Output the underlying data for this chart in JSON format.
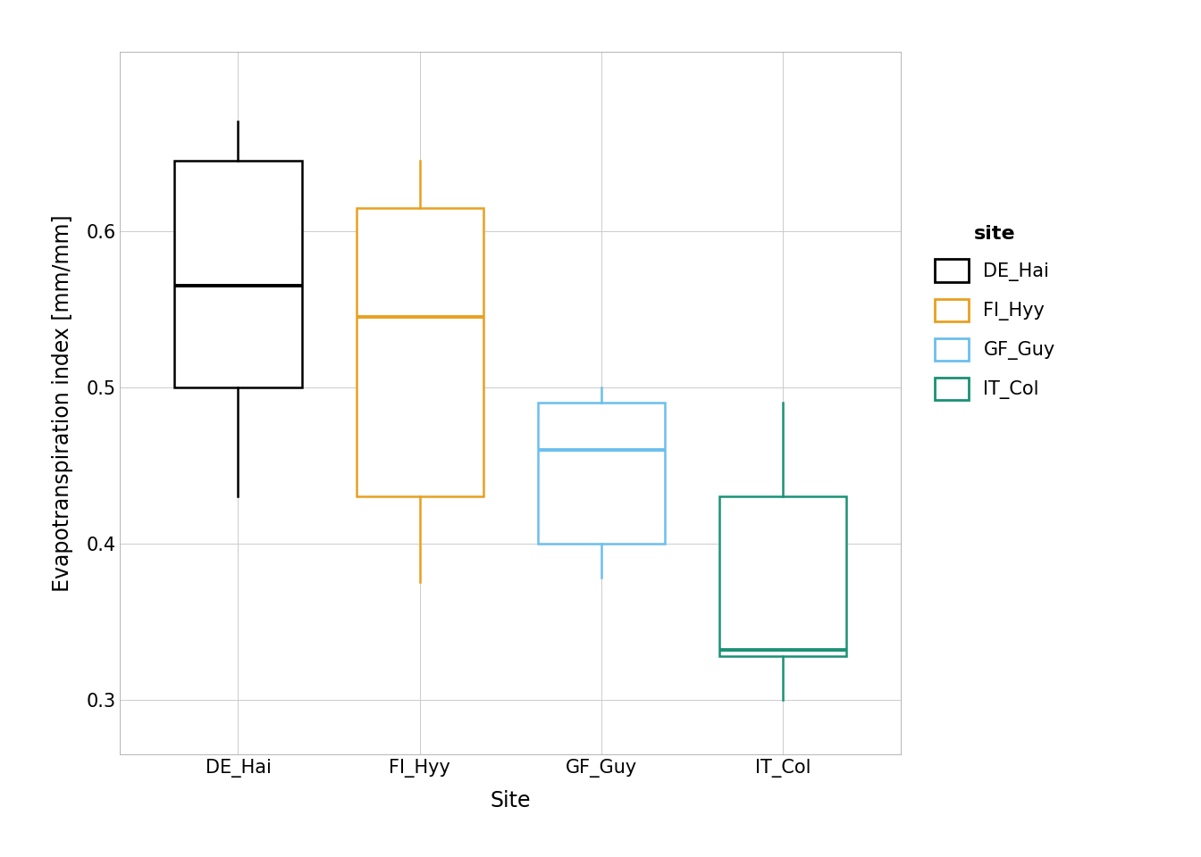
{
  "sites": [
    "DE_Hai",
    "FI_Hyy",
    "GF_Guy",
    "IT_Col"
  ],
  "colors": [
    "#000000",
    "#E8A020",
    "#6BBFED",
    "#1A9174"
  ],
  "boxes": [
    {
      "q1": 0.5,
      "median": 0.565,
      "q3": 0.645,
      "whislo": 0.43,
      "whishi": 0.67
    },
    {
      "q1": 0.43,
      "median": 0.545,
      "q3": 0.615,
      "whislo": 0.375,
      "whishi": 0.645
    },
    {
      "q1": 0.4,
      "median": 0.46,
      "q3": 0.49,
      "whislo": 0.378,
      "whishi": 0.5
    },
    {
      "q1": 0.328,
      "median": 0.332,
      "q3": 0.43,
      "whislo": 0.3,
      "whishi": 0.49
    }
  ],
  "ylabel": "Evapotranspiration index [mm/mm]",
  "xlabel": "Site",
  "legend_title": "site",
  "ylim": [
    0.265,
    0.715
  ],
  "yticks": [
    0.3,
    0.4,
    0.5,
    0.6
  ],
  "background_color": "#FFFFFF",
  "panel_background": "#FFFFFF",
  "grid_color": "#CCCCCC",
  "box_width": 0.7,
  "linewidth": 1.8,
  "median_linewidth": 2.8
}
